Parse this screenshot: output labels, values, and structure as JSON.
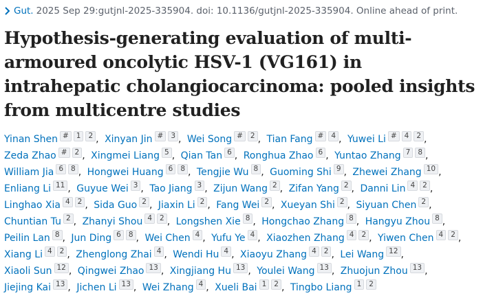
{
  "citation": {
    "journal": "Gut.",
    "details": "2025 Sep 29:gutjnl-2025-335904. doi: 10.1136/gutjnl-2025-335904. Online ahead of print."
  },
  "title": "Hypothesis-generating evaluation of multi-armoured oncolytic HSV-1 (VG161) in intrahepatic cholangiocarcinoma: pooled insights from multicentre studies",
  "authors": [
    {
      "name": "Yinan Shen",
      "affiliations": [
        "#",
        "1",
        "2"
      ]
    },
    {
      "name": "Xinyan Jin",
      "affiliations": [
        "#",
        "3"
      ]
    },
    {
      "name": "Wei Song",
      "affiliations": [
        "#",
        "2"
      ]
    },
    {
      "name": "Tian Fang",
      "affiliations": [
        "#",
        "4"
      ]
    },
    {
      "name": "Yuwei Li",
      "affiliations": [
        "#",
        "4",
        "2"
      ]
    },
    {
      "name": "Zeda Zhao",
      "affiliations": [
        "#",
        "2"
      ]
    },
    {
      "name": "Xingmei Liang",
      "affiliations": [
        "5"
      ]
    },
    {
      "name": "Qian Tan",
      "affiliations": [
        "6"
      ]
    },
    {
      "name": "Ronghua Zhao",
      "affiliations": [
        "6"
      ]
    },
    {
      "name": "Yuntao Zhang",
      "affiliations": [
        "7",
        "8"
      ]
    },
    {
      "name": "William Jia",
      "affiliations": [
        "6",
        "8"
      ]
    },
    {
      "name": "Hongwei Huang",
      "affiliations": [
        "6",
        "8"
      ]
    },
    {
      "name": "Tengjie Wu",
      "affiliations": [
        "8"
      ]
    },
    {
      "name": "Guoming Shi",
      "affiliations": [
        "9"
      ]
    },
    {
      "name": "Zhewei Zhang",
      "affiliations": [
        "10"
      ]
    },
    {
      "name": "Enliang Li",
      "affiliations": [
        "11"
      ]
    },
    {
      "name": "Guyue Wei",
      "affiliations": [
        "3"
      ]
    },
    {
      "name": "Tao Jiang",
      "affiliations": [
        "3"
      ]
    },
    {
      "name": "Zijun Wang",
      "affiliations": [
        "2"
      ]
    },
    {
      "name": "Zifan Yang",
      "affiliations": [
        "2"
      ]
    },
    {
      "name": "Danni Lin",
      "affiliations": [
        "4",
        "2"
      ]
    },
    {
      "name": "Linghao Xia",
      "affiliations": [
        "4",
        "2"
      ]
    },
    {
      "name": "Sida Guo",
      "affiliations": [
        "2"
      ]
    },
    {
      "name": "Jiaxin Li",
      "affiliations": [
        "2"
      ]
    },
    {
      "name": "Fang Wei",
      "affiliations": [
        "2"
      ]
    },
    {
      "name": "Xueyan Shi",
      "affiliations": [
        "2"
      ]
    },
    {
      "name": "Siyuan Chen",
      "affiliations": [
        "2"
      ]
    },
    {
      "name": "Chuntian Tu",
      "affiliations": [
        "2"
      ]
    },
    {
      "name": "Zhanyi Shou",
      "affiliations": [
        "4",
        "2"
      ]
    },
    {
      "name": "Longshen Xie",
      "affiliations": [
        "8"
      ]
    },
    {
      "name": "Hongchao Zhang",
      "affiliations": [
        "8"
      ]
    },
    {
      "name": "Hangyu Zhou",
      "affiliations": [
        "8"
      ]
    },
    {
      "name": "Peilin Lan",
      "affiliations": [
        "8"
      ]
    },
    {
      "name": "Jun Ding",
      "affiliations": [
        "6",
        "8"
      ]
    },
    {
      "name": "Wei Chen",
      "affiliations": [
        "4"
      ]
    },
    {
      "name": "Yufu Ye",
      "affiliations": [
        "4"
      ]
    },
    {
      "name": "Xiaozhen Zhang",
      "affiliations": [
        "4",
        "2"
      ]
    },
    {
      "name": "Yiwen Chen",
      "affiliations": [
        "4",
        "2"
      ]
    },
    {
      "name": "Xiang Li",
      "affiliations": [
        "4",
        "2"
      ]
    },
    {
      "name": "Zhenglong Zhai",
      "affiliations": [
        "4"
      ]
    },
    {
      "name": "Wendi Hu",
      "affiliations": [
        "4"
      ]
    },
    {
      "name": "Xiaoyu Zhang",
      "affiliations": [
        "4",
        "2"
      ]
    },
    {
      "name": "Lei Wang",
      "affiliations": [
        "12"
      ]
    },
    {
      "name": "Xiaoli Sun",
      "affiliations": [
        "12"
      ]
    },
    {
      "name": "Qingwei Zhao",
      "affiliations": [
        "13"
      ]
    },
    {
      "name": "Xingjiang Hu",
      "affiliations": [
        "13"
      ]
    },
    {
      "name": "Youlei Wang",
      "affiliations": [
        "13"
      ]
    },
    {
      "name": "Zhuojun Zhou",
      "affiliations": [
        "13"
      ]
    },
    {
      "name": "Jiejing Kai",
      "affiliations": [
        "13"
      ]
    },
    {
      "name": "Jichen Li",
      "affiliations": [
        "13"
      ]
    },
    {
      "name": "Wei Zhang",
      "affiliations": [
        "4"
      ]
    },
    {
      "name": "Xueli Bai",
      "affiliations": [
        "1",
        "2"
      ]
    },
    {
      "name": "Tingbo Liang",
      "affiliations": [
        "1",
        "2"
      ]
    }
  ]
}
